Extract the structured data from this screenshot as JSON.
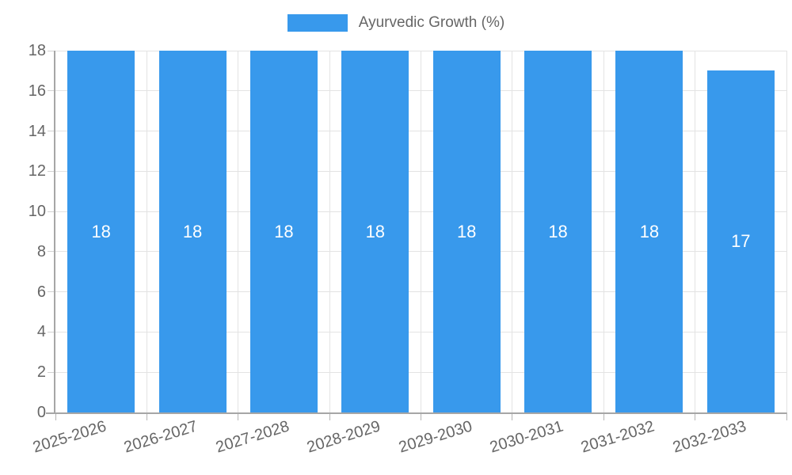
{
  "chart_data": {
    "type": "bar",
    "title": "",
    "legend": "Ayurvedic Growth (%)",
    "legend_position": "top",
    "categories": [
      "2025-2026",
      "2026-2027",
      "2027-2028",
      "2028-2029",
      "2029-2030",
      "2030-2031",
      "2031-2032",
      "2032-2033"
    ],
    "series": [
      {
        "name": "Ayurvedic Growth (%)",
        "values": [
          18,
          18,
          18,
          18,
          18,
          18,
          18,
          17
        ]
      }
    ],
    "value_labels": [
      "18",
      "18",
      "18",
      "18",
      "18",
      "18",
      "18",
      "17"
    ],
    "xlabel": "",
    "ylabel": "",
    "ylim": [
      0,
      18
    ],
    "yticks": [
      0,
      2,
      4,
      6,
      8,
      10,
      12,
      14,
      16,
      18
    ],
    "grid": true,
    "colors": {
      "bar": "#3899ec",
      "bar_label": "#ffffff",
      "text": "#666666",
      "grid": "#e3e3e3",
      "axis": "#a6a6a6"
    }
  }
}
